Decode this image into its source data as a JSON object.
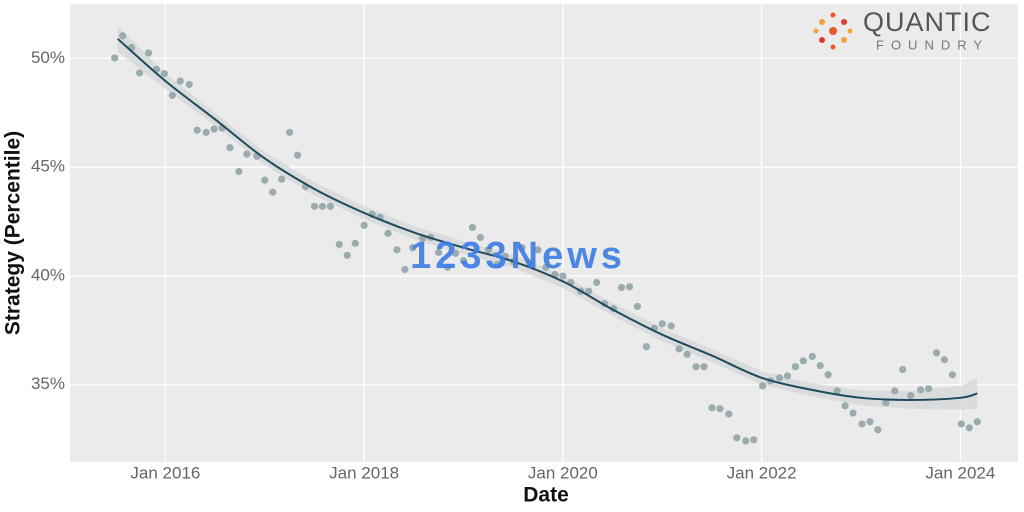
{
  "chart_data": {
    "type": "scatter",
    "xlabel": "Date",
    "ylabel": "Strategy (Percentile)",
    "logo_top": "QUANTIC",
    "logo_bottom": "FOUNDRY",
    "watermark": "1233News",
    "xlim": [
      2015.04,
      2024.58
    ],
    "ylim": [
      31.45,
      52.5
    ],
    "xticks": [
      {
        "value": 2016,
        "label": "Jan 2016"
      },
      {
        "value": 2018,
        "label": "Jan 2018"
      },
      {
        "value": 2020,
        "label": "Jan 2020"
      },
      {
        "value": 2022,
        "label": "Jan 2022"
      },
      {
        "value": 2024,
        "label": "Jan 2024"
      }
    ],
    "yticks": [
      {
        "value": 35,
        "label": "35%"
      },
      {
        "value": 40,
        "label": "40%"
      },
      {
        "value": 45,
        "label": "45%"
      },
      {
        "value": 50,
        "label": "50%"
      }
    ],
    "grid": true,
    "color": "#9aacb0",
    "trend_color": "#1d4b5c",
    "band_color": "#d4d7d8",
    "x": [
      2015.49,
      2015.57,
      2015.66,
      2015.74,
      2015.83,
      2015.91,
      2015.99,
      2016.07,
      2016.15,
      2016.24,
      2016.32,
      2016.41,
      2016.49,
      2016.57,
      2016.65,
      2016.74,
      2016.82,
      2016.92,
      2017.0,
      2017.08,
      2017.17,
      2017.25,
      2017.33,
      2017.41,
      2017.5,
      2017.58,
      2017.66,
      2017.75,
      2017.83,
      2017.91,
      2018.0,
      2018.08,
      2018.16,
      2018.24,
      2018.33,
      2018.41,
      2018.49,
      2018.59,
      2018.67,
      2018.75,
      2018.84,
      2018.92,
      2019.0,
      2019.09,
      2019.17,
      2019.25,
      2019.34,
      2019.42,
      2019.5,
      2019.59,
      2019.67,
      2019.75,
      2019.83,
      2019.92,
      2020.0,
      2020.08,
      2020.18,
      2020.26,
      2020.34,
      2020.42,
      2020.51,
      2020.59,
      2020.67,
      2020.75,
      2020.84,
      2020.92,
      2021.0,
      2021.09,
      2021.17,
      2021.25,
      2021.34,
      2021.42,
      2021.5,
      2021.58,
      2021.67,
      2021.75,
      2021.84,
      2021.92,
      2022.01,
      2022.09,
      2022.18,
      2022.26,
      2022.34,
      2022.42,
      2022.51,
      2022.59,
      2022.67,
      2022.76,
      2022.84,
      2022.92,
      2023.01,
      2023.09,
      2023.17,
      2023.25,
      2023.34,
      2023.42,
      2023.5,
      2023.6,
      2023.68,
      2023.76,
      2023.84,
      2023.92,
      2024.01,
      2024.09,
      2024.17
    ],
    "values": [
      50.02,
      51.04,
      50.5,
      49.33,
      50.25,
      49.5,
      49.3,
      48.3,
      48.96,
      48.8,
      46.7,
      46.6,
      46.75,
      46.8,
      45.9,
      44.8,
      45.6,
      45.5,
      44.4,
      43.85,
      44.45,
      46.6,
      45.55,
      44.1,
      43.2,
      43.2,
      43.2,
      41.45,
      40.95,
      41.5,
      42.33,
      42.83,
      42.7,
      41.96,
      41.2,
      40.3,
      41.3,
      41.73,
      41.77,
      41.08,
      40.4,
      41.04,
      40.7,
      42.23,
      41.77,
      41.2,
      40.53,
      40.9,
      40.67,
      41.3,
      40.6,
      41.2,
      40.4,
      40.07,
      40.0,
      39.7,
      39.3,
      39.3,
      39.7,
      38.73,
      38.5,
      39.47,
      39.5,
      38.6,
      36.75,
      37.6,
      37.8,
      37.7,
      36.65,
      36.4,
      35.83,
      35.83,
      33.94,
      33.9,
      33.66,
      32.56,
      32.42,
      32.47,
      34.95,
      35.18,
      35.32,
      35.41,
      35.83,
      36.1,
      36.3,
      35.88,
      35.46,
      34.72,
      34.03,
      33.7,
      33.2,
      33.3,
      32.93,
      34.17,
      34.72,
      35.7,
      34.5,
      34.77,
      34.82,
      36.47,
      36.15,
      35.46,
      33.2,
      33.02,
      33.3
    ],
    "trend_x": [
      2015.52,
      2016,
      2016.5,
      2017,
      2017.5,
      2018,
      2018.5,
      2019,
      2019.5,
      2020,
      2020.5,
      2021,
      2021.5,
      2022,
      2022.5,
      2023,
      2023.5,
      2024,
      2024.17
    ],
    "trend_values": [
      50.9,
      48.96,
      47.2,
      45.4,
      44.0,
      42.9,
      42.0,
      41.3,
      40.67,
      39.75,
      38.46,
      37.3,
      36.34,
      35.32,
      34.77,
      34.4,
      34.3,
      34.4,
      34.6
    ],
    "trend_lower": [
      50.3,
      48.6,
      46.9,
      45.1,
      43.7,
      42.6,
      41.7,
      41.0,
      40.37,
      39.45,
      38.16,
      37.0,
      36.04,
      35.02,
      34.47,
      34.05,
      33.9,
      33.85,
      33.9
    ],
    "trend_upper": [
      51.5,
      49.32,
      47.5,
      45.7,
      44.3,
      43.2,
      42.3,
      41.6,
      40.97,
      40.05,
      38.76,
      37.6,
      36.64,
      35.62,
      35.07,
      34.75,
      34.7,
      34.95,
      35.3
    ]
  }
}
